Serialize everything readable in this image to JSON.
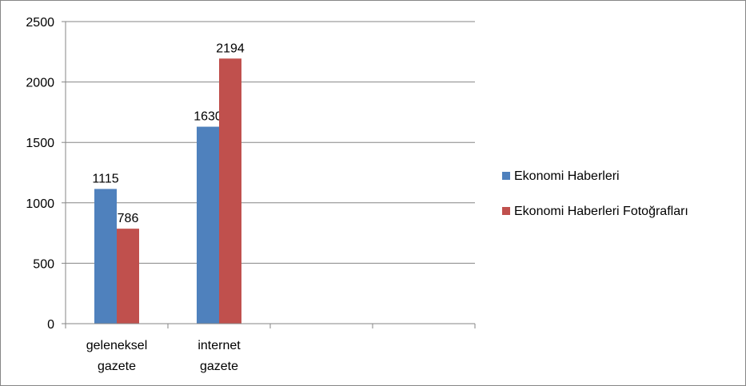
{
  "chart_data": {
    "type": "bar",
    "categories": [
      [
        "geleneksel",
        "gazete"
      ],
      [
        "internet",
        "gazete"
      ],
      [
        "",
        ""
      ],
      [
        "",
        ""
      ]
    ],
    "series": [
      {
        "name": "Ekonomi Haberleri",
        "color": "#4F81BD",
        "values": [
          1115,
          1630,
          null,
          null
        ]
      },
      {
        "name": "Ekonomi Haberleri Fotoğrafları",
        "color": "#C0504D",
        "values": [
          786,
          2194,
          null,
          null
        ]
      }
    ],
    "ylim": [
      0,
      2500
    ],
    "yticks": [
      0,
      500,
      1000,
      1500,
      2000,
      2500
    ],
    "grid": true,
    "legend_position": "right",
    "data_labels": true
  }
}
